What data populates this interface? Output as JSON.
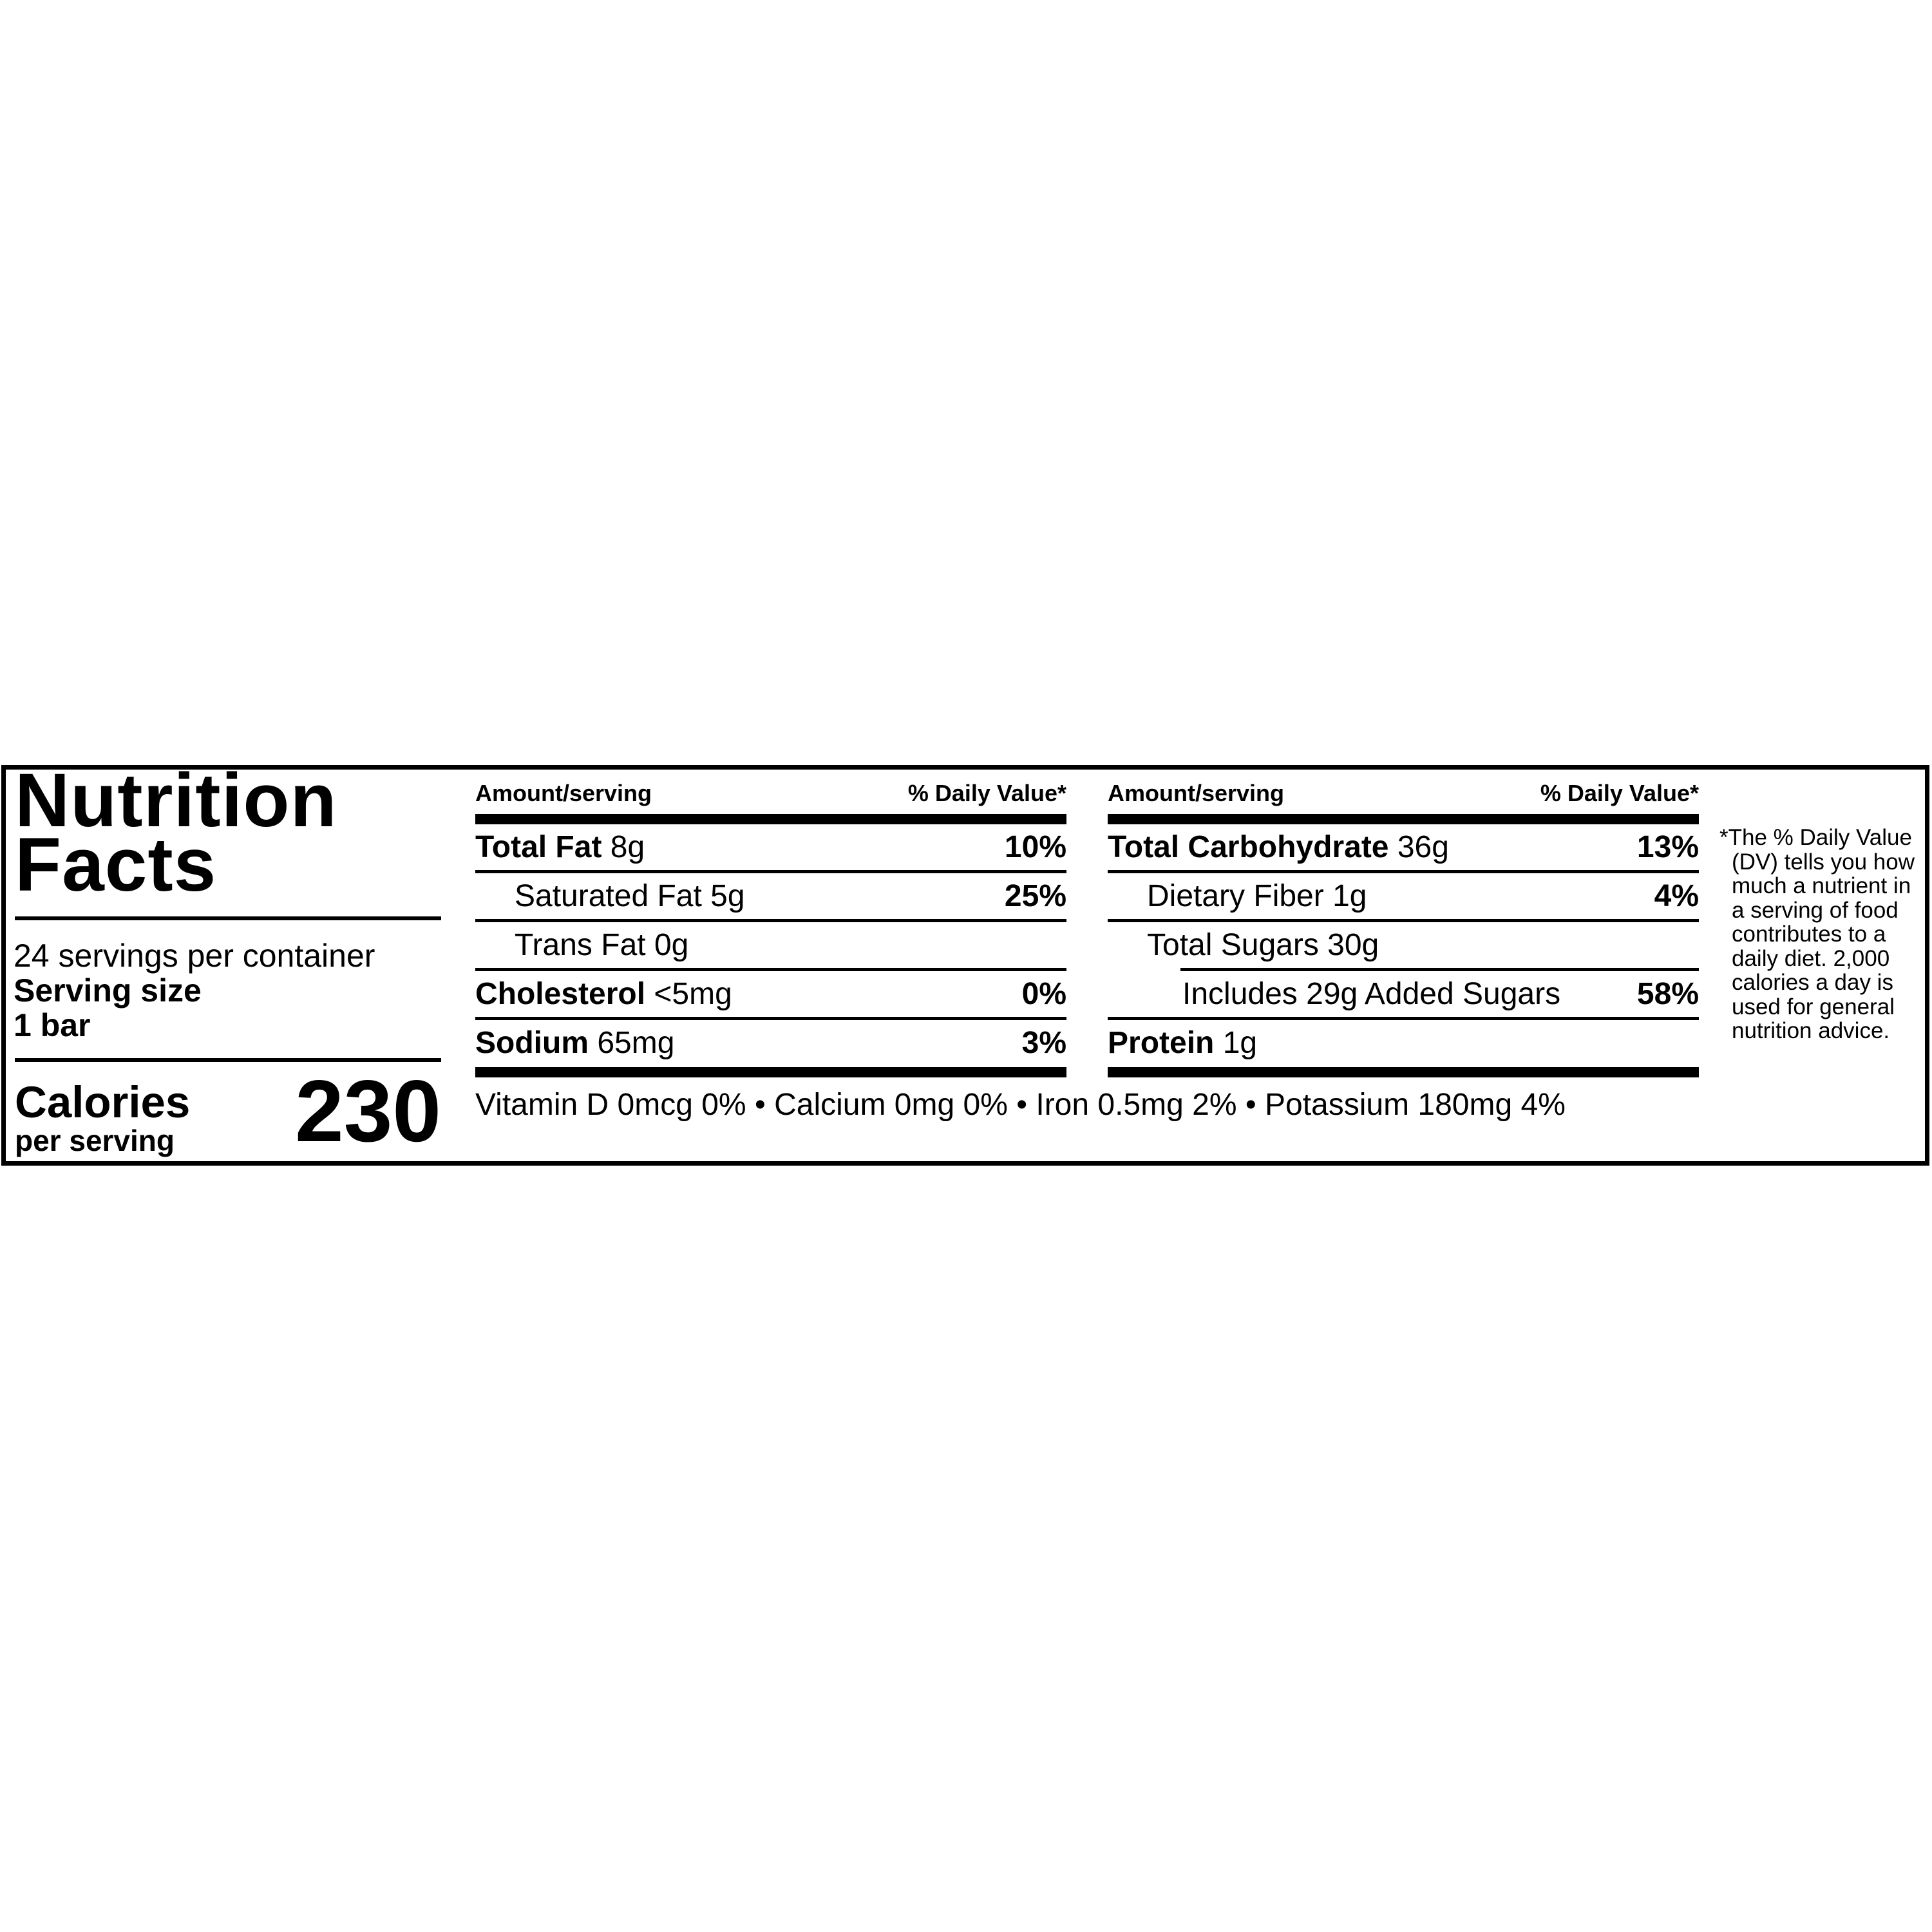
{
  "label": {
    "title_line1": "Nutrition",
    "title_line2": "Facts",
    "servings_per_container": "24 servings per container",
    "serving_size_label": "Serving size",
    "serving_size_value": "1 bar",
    "calories_label": "Calories",
    "calories_sublabel": "per serving",
    "calories_value": "230",
    "left_table": {
      "header_amount": "Amount/serving",
      "header_dv": "% Daily Value*",
      "rows": [
        {
          "name": "Total Fat",
          "amount": "8g",
          "dv": "10%"
        },
        {
          "name": "Saturated Fat 5g",
          "amount": "",
          "dv": "25%"
        },
        {
          "name": "Trans Fat 0g",
          "amount": "",
          "dv": ""
        },
        {
          "name": "Cholesterol",
          "amount": "<5mg",
          "dv": "0%"
        },
        {
          "name": "Sodium",
          "amount": "65mg",
          "dv": "3%"
        }
      ]
    },
    "right_table": {
      "header_amount": "Amount/serving",
      "header_dv": "% Daily Value*",
      "rows": [
        {
          "name": "Total Carbohydrate",
          "amount": "36g",
          "dv": "13%"
        },
        {
          "name": "Dietary Fiber 1g",
          "amount": "",
          "dv": "4%"
        },
        {
          "name": "Total Sugars 30g",
          "amount": "",
          "dv": ""
        },
        {
          "name": "Includes 29g Added Sugars",
          "amount": "",
          "dv": "58%"
        },
        {
          "name": "Protein",
          "amount": "1g",
          "dv": ""
        }
      ]
    },
    "vitamins": "Vitamin D 0mcg 0% • Calcium 0mg 0% • Iron 0.5mg 2% • Potassium 180mg 4%",
    "footnote": "*The % Daily Value (DV) tells you how much a nutrient in a serving of food contributes to a daily diet. 2,000 calories a day is used for general nutrition advice."
  }
}
